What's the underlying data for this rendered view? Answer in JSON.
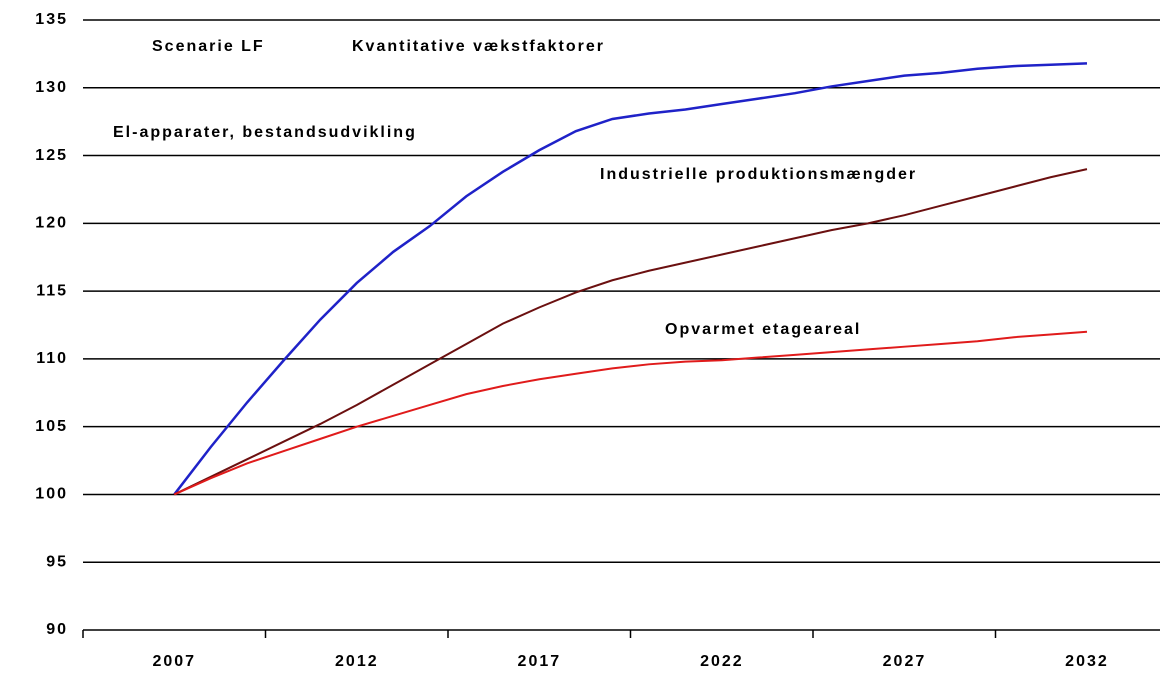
{
  "chart_data": {
    "type": "line",
    "title": "Scenarie LF",
    "subtitle": "Kvantitative vækstfaktorer",
    "x": [
      2007,
      2008,
      2009,
      2010,
      2011,
      2012,
      2013,
      2014,
      2015,
      2016,
      2017,
      2018,
      2019,
      2020,
      2021,
      2022,
      2023,
      2024,
      2025,
      2026,
      2027,
      2028,
      2029,
      2030,
      2031,
      2032
    ],
    "series": [
      {
        "name": "El-apparater, bestandsudvikling",
        "color": "#1f22c8",
        "values": [
          100,
          103.5,
          106.8,
          109.9,
          112.9,
          115.6,
          117.9,
          119.8,
          122.0,
          123.8,
          125.4,
          126.8,
          127.7,
          128.1,
          128.4,
          128.8,
          129.2,
          129.6,
          130.1,
          130.5,
          130.9,
          131.1,
          131.4,
          131.6,
          131.7,
          131.8
        ]
      },
      {
        "name": "Industrielle produktionsmængder",
        "color": "#6b1010",
        "values": [
          100,
          101.3,
          102.6,
          103.9,
          105.2,
          106.6,
          108.1,
          109.6,
          111.1,
          112.6,
          113.8,
          114.9,
          115.8,
          116.5,
          117.1,
          117.7,
          118.3,
          118.9,
          119.5,
          120.0,
          120.6,
          121.3,
          122.0,
          122.7,
          123.4,
          124.0
        ]
      },
      {
        "name": "Opvarmet etageareal",
        "color": "#e01b1b",
        "values": [
          100,
          101.2,
          102.3,
          103.2,
          104.1,
          105.0,
          105.8,
          106.6,
          107.4,
          108.0,
          108.5,
          108.9,
          109.3,
          109.6,
          109.8,
          109.9,
          110.1,
          110.3,
          110.5,
          110.7,
          110.9,
          111.1,
          111.3,
          111.6,
          111.8,
          112.0
        ]
      }
    ],
    "xlim": [
      2004.5,
      2034
    ],
    "xticks": [
      2007,
      2012,
      2017,
      2022,
      2027,
      2032
    ],
    "ylim": [
      90,
      135
    ],
    "yticks": [
      90,
      95,
      100,
      105,
      110,
      115,
      120,
      125,
      130,
      135
    ],
    "grid": true
  }
}
